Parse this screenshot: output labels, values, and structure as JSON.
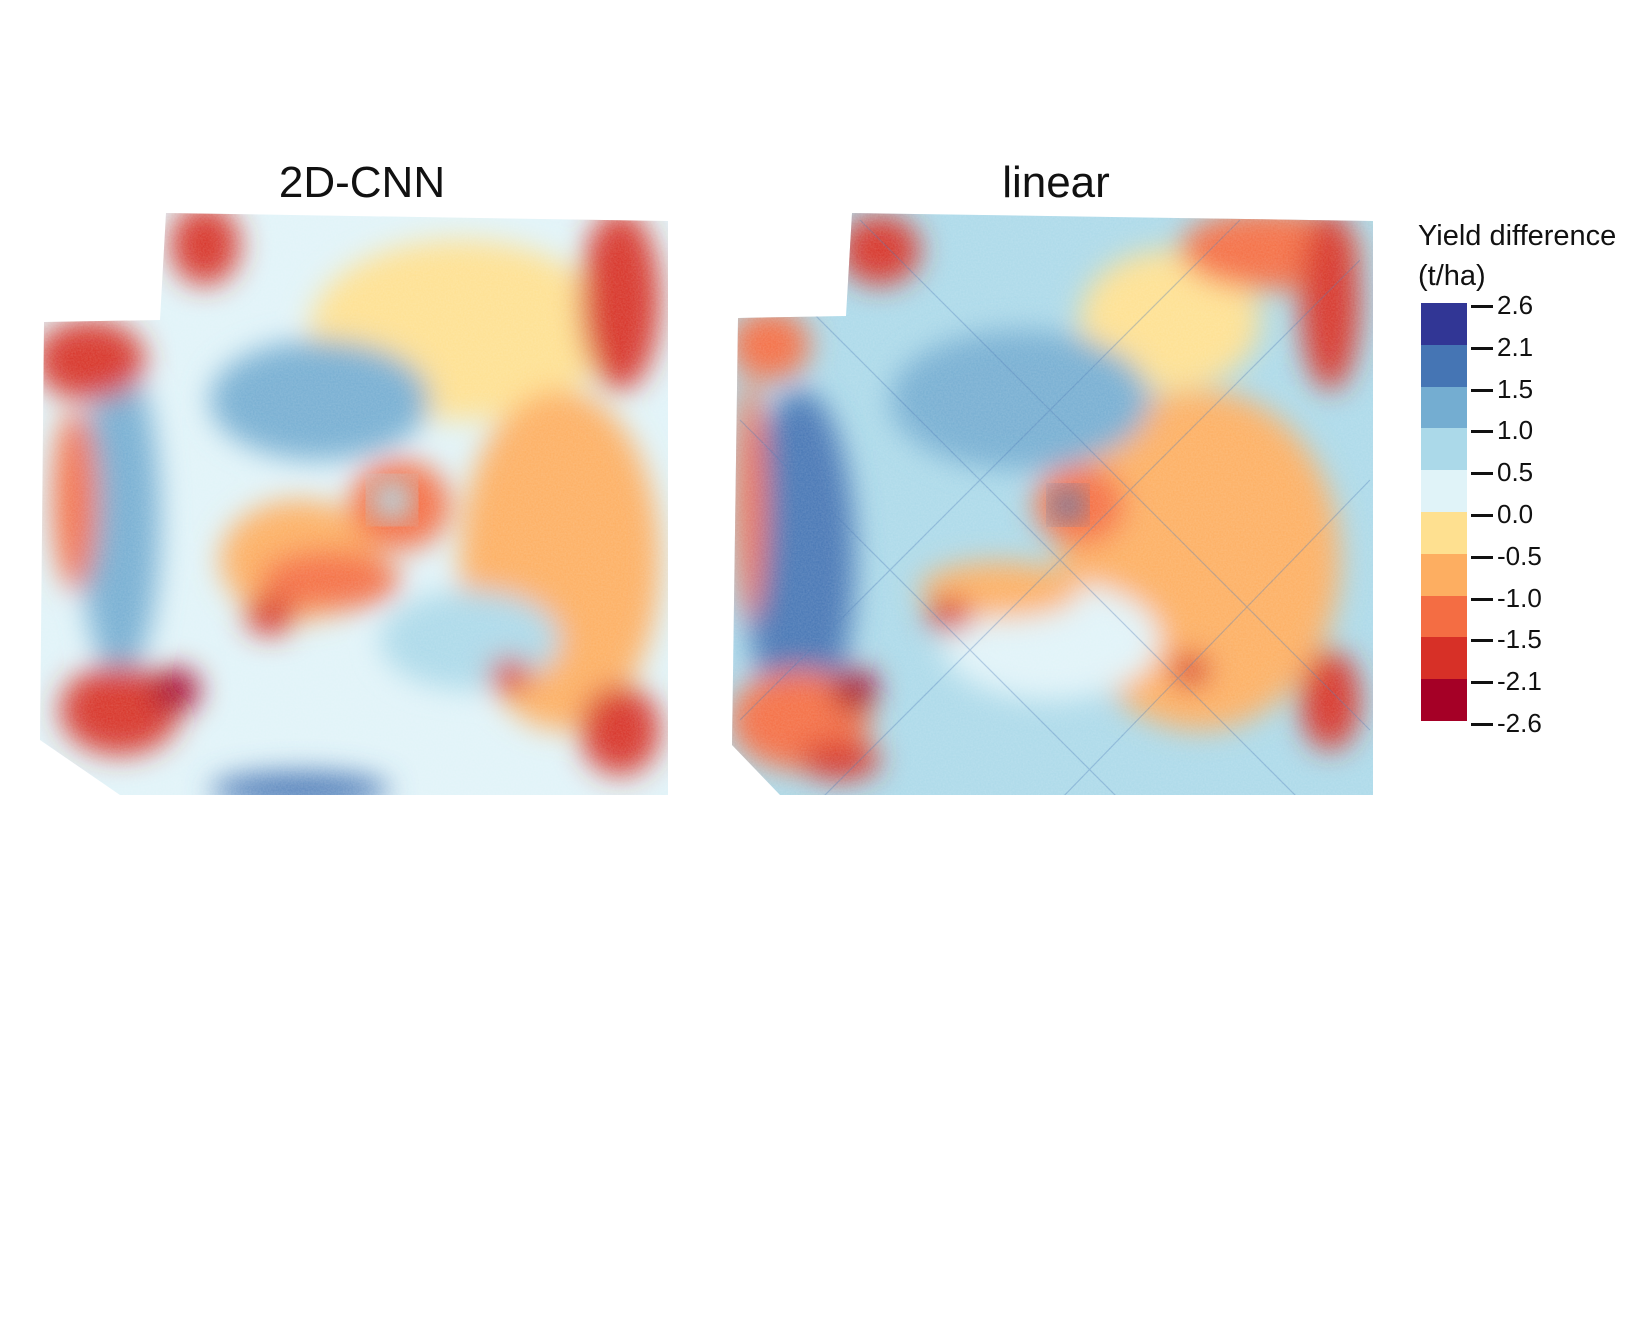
{
  "panels": [
    {
      "title": "2D-CNN"
    },
    {
      "title": "linear"
    }
  ],
  "legend": {
    "title_line1": "Yield difference",
    "title_line2": "(t/ha)",
    "colors": [
      "#313695",
      "#4575b4",
      "#74add1",
      "#abd9e9",
      "#e0f3f8",
      "#fee090",
      "#fdae61",
      "#f46d43",
      "#d73027",
      "#a50026"
    ],
    "ticks": [
      "2.6",
      "2.1",
      "1.5",
      "1.0",
      "0.5",
      "0.0",
      "-0.5",
      "-1.0",
      "-1.5",
      "-2.1",
      "-2.6"
    ]
  }
}
